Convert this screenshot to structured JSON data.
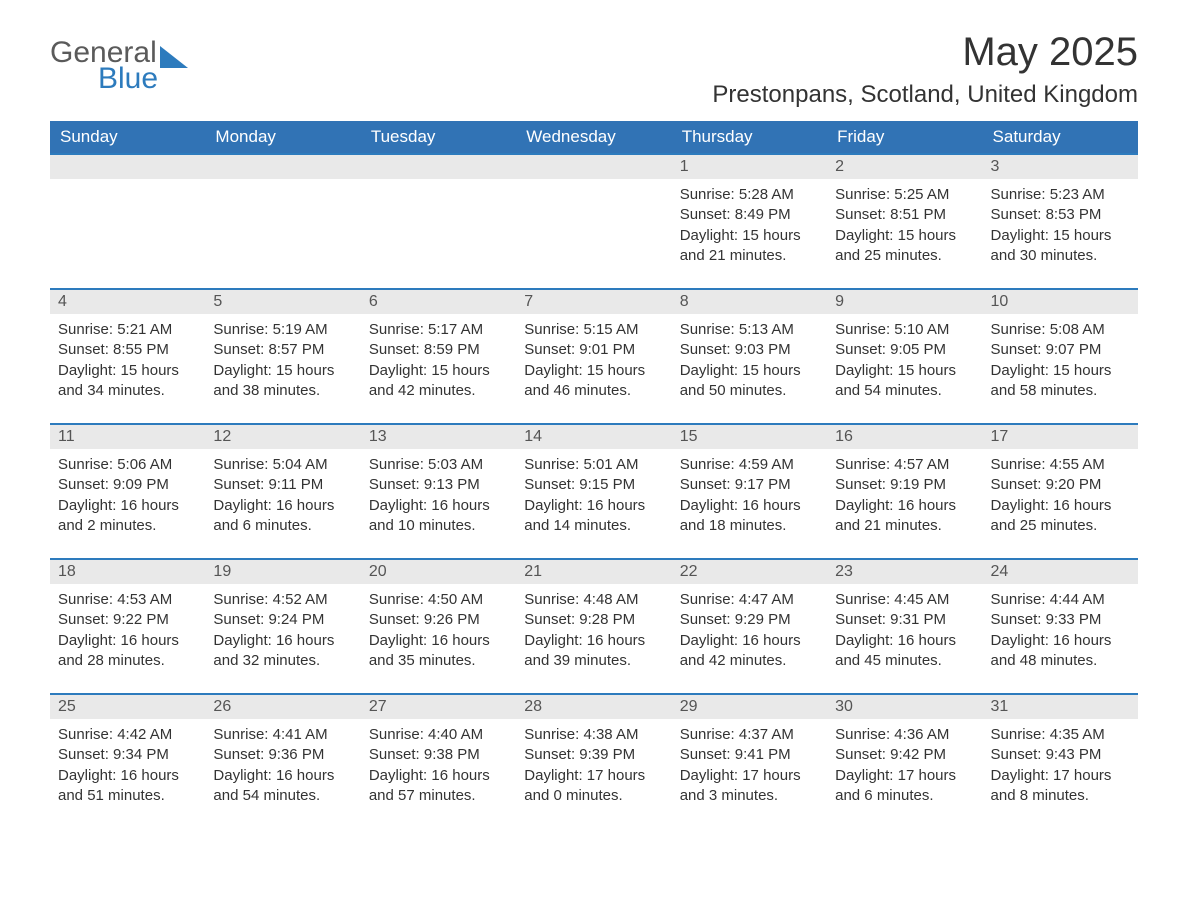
{
  "logo": {
    "line1": "General",
    "line2": "Blue"
  },
  "title": "May 2025",
  "location": "Prestonpans, Scotland, United Kingdom",
  "day_names": [
    "Sunday",
    "Monday",
    "Tuesday",
    "Wednesday",
    "Thursday",
    "Friday",
    "Saturday"
  ],
  "colors": {
    "header_bg": "#3173b5",
    "header_fg": "#ffffff",
    "row_divider": "#2d7bbd",
    "daynum_bg": "#e9e9e9",
    "body_bg": "#ffffff",
    "text": "#333333",
    "logo_gray": "#5a5a5a",
    "logo_blue": "#2d7bbd"
  },
  "typography": {
    "month_title_size": 40,
    "location_size": 24,
    "header_size": 17,
    "daynum_size": 16,
    "body_size": 15
  },
  "weeks": [
    [
      null,
      null,
      null,
      null,
      {
        "n": "1",
        "sunrise": "Sunrise: 5:28 AM",
        "sunset": "Sunset: 8:49 PM",
        "daylight": "Daylight: 15 hours and 21 minutes."
      },
      {
        "n": "2",
        "sunrise": "Sunrise: 5:25 AM",
        "sunset": "Sunset: 8:51 PM",
        "daylight": "Daylight: 15 hours and 25 minutes."
      },
      {
        "n": "3",
        "sunrise": "Sunrise: 5:23 AM",
        "sunset": "Sunset: 8:53 PM",
        "daylight": "Daylight: 15 hours and 30 minutes."
      }
    ],
    [
      {
        "n": "4",
        "sunrise": "Sunrise: 5:21 AM",
        "sunset": "Sunset: 8:55 PM",
        "daylight": "Daylight: 15 hours and 34 minutes."
      },
      {
        "n": "5",
        "sunrise": "Sunrise: 5:19 AM",
        "sunset": "Sunset: 8:57 PM",
        "daylight": "Daylight: 15 hours and 38 minutes."
      },
      {
        "n": "6",
        "sunrise": "Sunrise: 5:17 AM",
        "sunset": "Sunset: 8:59 PM",
        "daylight": "Daylight: 15 hours and 42 minutes."
      },
      {
        "n": "7",
        "sunrise": "Sunrise: 5:15 AM",
        "sunset": "Sunset: 9:01 PM",
        "daylight": "Daylight: 15 hours and 46 minutes."
      },
      {
        "n": "8",
        "sunrise": "Sunrise: 5:13 AM",
        "sunset": "Sunset: 9:03 PM",
        "daylight": "Daylight: 15 hours and 50 minutes."
      },
      {
        "n": "9",
        "sunrise": "Sunrise: 5:10 AM",
        "sunset": "Sunset: 9:05 PM",
        "daylight": "Daylight: 15 hours and 54 minutes."
      },
      {
        "n": "10",
        "sunrise": "Sunrise: 5:08 AM",
        "sunset": "Sunset: 9:07 PM",
        "daylight": "Daylight: 15 hours and 58 minutes."
      }
    ],
    [
      {
        "n": "11",
        "sunrise": "Sunrise: 5:06 AM",
        "sunset": "Sunset: 9:09 PM",
        "daylight": "Daylight: 16 hours and 2 minutes."
      },
      {
        "n": "12",
        "sunrise": "Sunrise: 5:04 AM",
        "sunset": "Sunset: 9:11 PM",
        "daylight": "Daylight: 16 hours and 6 minutes."
      },
      {
        "n": "13",
        "sunrise": "Sunrise: 5:03 AM",
        "sunset": "Sunset: 9:13 PM",
        "daylight": "Daylight: 16 hours and 10 minutes."
      },
      {
        "n": "14",
        "sunrise": "Sunrise: 5:01 AM",
        "sunset": "Sunset: 9:15 PM",
        "daylight": "Daylight: 16 hours and 14 minutes."
      },
      {
        "n": "15",
        "sunrise": "Sunrise: 4:59 AM",
        "sunset": "Sunset: 9:17 PM",
        "daylight": "Daylight: 16 hours and 18 minutes."
      },
      {
        "n": "16",
        "sunrise": "Sunrise: 4:57 AM",
        "sunset": "Sunset: 9:19 PM",
        "daylight": "Daylight: 16 hours and 21 minutes."
      },
      {
        "n": "17",
        "sunrise": "Sunrise: 4:55 AM",
        "sunset": "Sunset: 9:20 PM",
        "daylight": "Daylight: 16 hours and 25 minutes."
      }
    ],
    [
      {
        "n": "18",
        "sunrise": "Sunrise: 4:53 AM",
        "sunset": "Sunset: 9:22 PM",
        "daylight": "Daylight: 16 hours and 28 minutes."
      },
      {
        "n": "19",
        "sunrise": "Sunrise: 4:52 AM",
        "sunset": "Sunset: 9:24 PM",
        "daylight": "Daylight: 16 hours and 32 minutes."
      },
      {
        "n": "20",
        "sunrise": "Sunrise: 4:50 AM",
        "sunset": "Sunset: 9:26 PM",
        "daylight": "Daylight: 16 hours and 35 minutes."
      },
      {
        "n": "21",
        "sunrise": "Sunrise: 4:48 AM",
        "sunset": "Sunset: 9:28 PM",
        "daylight": "Daylight: 16 hours and 39 minutes."
      },
      {
        "n": "22",
        "sunrise": "Sunrise: 4:47 AM",
        "sunset": "Sunset: 9:29 PM",
        "daylight": "Daylight: 16 hours and 42 minutes."
      },
      {
        "n": "23",
        "sunrise": "Sunrise: 4:45 AM",
        "sunset": "Sunset: 9:31 PM",
        "daylight": "Daylight: 16 hours and 45 minutes."
      },
      {
        "n": "24",
        "sunrise": "Sunrise: 4:44 AM",
        "sunset": "Sunset: 9:33 PM",
        "daylight": "Daylight: 16 hours and 48 minutes."
      }
    ],
    [
      {
        "n": "25",
        "sunrise": "Sunrise: 4:42 AM",
        "sunset": "Sunset: 9:34 PM",
        "daylight": "Daylight: 16 hours and 51 minutes."
      },
      {
        "n": "26",
        "sunrise": "Sunrise: 4:41 AM",
        "sunset": "Sunset: 9:36 PM",
        "daylight": "Daylight: 16 hours and 54 minutes."
      },
      {
        "n": "27",
        "sunrise": "Sunrise: 4:40 AM",
        "sunset": "Sunset: 9:38 PM",
        "daylight": "Daylight: 16 hours and 57 minutes."
      },
      {
        "n": "28",
        "sunrise": "Sunrise: 4:38 AM",
        "sunset": "Sunset: 9:39 PM",
        "daylight": "Daylight: 17 hours and 0 minutes."
      },
      {
        "n": "29",
        "sunrise": "Sunrise: 4:37 AM",
        "sunset": "Sunset: 9:41 PM",
        "daylight": "Daylight: 17 hours and 3 minutes."
      },
      {
        "n": "30",
        "sunrise": "Sunrise: 4:36 AM",
        "sunset": "Sunset: 9:42 PM",
        "daylight": "Daylight: 17 hours and 6 minutes."
      },
      {
        "n": "31",
        "sunrise": "Sunrise: 4:35 AM",
        "sunset": "Sunset: 9:43 PM",
        "daylight": "Daylight: 17 hours and 8 minutes."
      }
    ]
  ]
}
